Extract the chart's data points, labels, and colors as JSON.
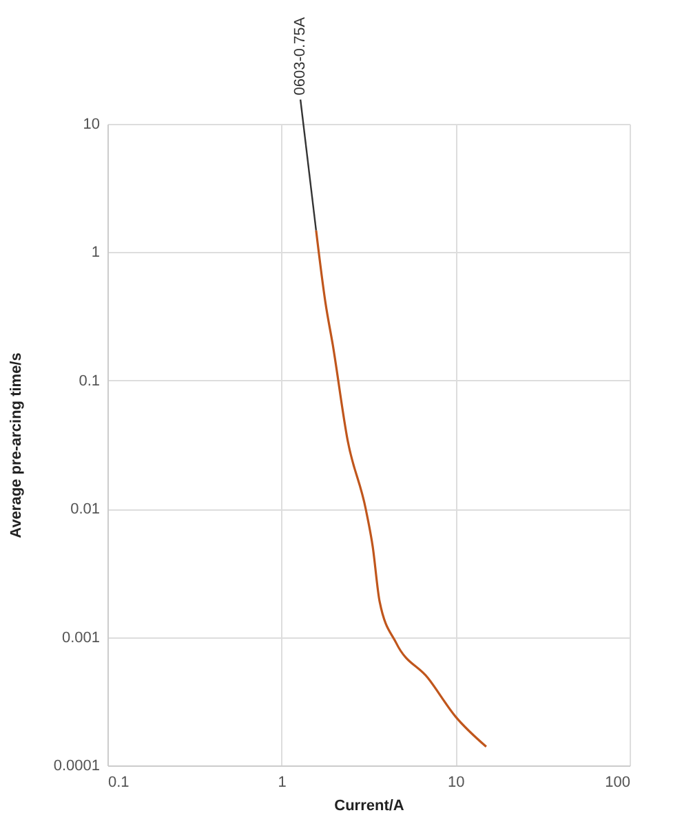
{
  "chart_data": {
    "type": "line",
    "xlabel": "Current/A",
    "ylabel": "Average pre-arcing time/s",
    "log": "xy",
    "grid": true,
    "x": [
      1.58,
      1.79,
      1.97,
      2.4,
      3.05,
      3.34,
      3.66,
      4.56,
      6.94,
      10,
      15
    ],
    "series": [
      {
        "color": "#c0561c",
        "values": [
          1.48,
          0.4,
          0.19,
          0.034,
          0.0099,
          0.0051,
          0.0019,
          0.0009,
          0.00048,
          0.00024,
          0.00014
        ]
      }
    ],
    "xlim": [
      0.1,
      100
    ],
    "xticks": [
      0.1,
      1,
      10,
      100
    ],
    "ylim": [
      0.0001,
      10
    ],
    "yticks": [
      0.0001,
      0.001,
      0.01,
      0.1,
      1,
      10
    ],
    "annotations": [
      {
        "text": "0603-0.75A",
        "x": 1.58,
        "y": 1.48
      }
    ]
  }
}
